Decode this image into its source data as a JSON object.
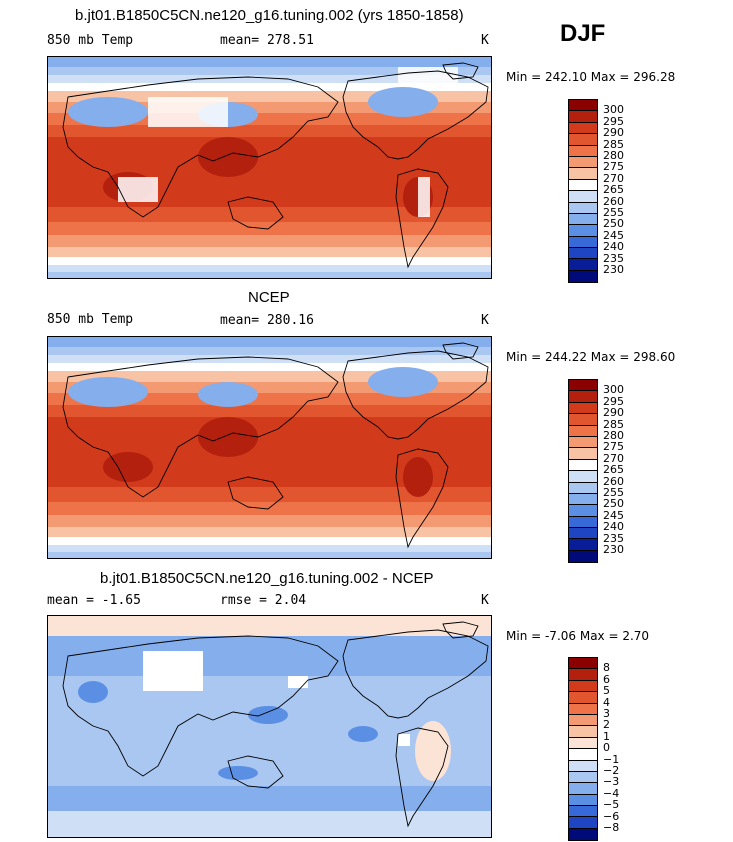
{
  "season": "DJF",
  "panels": [
    {
      "title": "b.jt01.B1850C5CN.ne120_g16.tuning.002 (yrs 1850-1858)",
      "left_label": "850 mb Temp",
      "center_label": "mean= 278.51",
      "unit": "K",
      "minmax": "Min = 242.10 Max = 296.28",
      "levels": [
        "300",
        "295",
        "290",
        "285",
        "280",
        "275",
        "270",
        "265",
        "260",
        "255",
        "250",
        "245",
        "240",
        "235",
        "230"
      ],
      "kind": "temp_model"
    },
    {
      "title": "NCEP",
      "left_label": "850 mb Temp",
      "center_label": "mean= 280.16",
      "unit": "K",
      "minmax": "Min = 244.22 Max = 298.60",
      "levels": [
        "300",
        "295",
        "290",
        "285",
        "280",
        "275",
        "270",
        "265",
        "260",
        "255",
        "250",
        "245",
        "240",
        "235",
        "230"
      ],
      "kind": "temp_obs"
    },
    {
      "title": "b.jt01.B1850C5CN.ne120_g16.tuning.002 - NCEP",
      "left_label": "mean =   -1.65",
      "center_label": "rmse =    2.04",
      "unit": "K",
      "minmax": "Min =  -7.06 Max =    2.70",
      "levels": [
        "8",
        "6",
        "5",
        "4",
        "3",
        "2",
        "1",
        "0",
        "−1",
        "−2",
        "−3",
        "−4",
        "−5",
        "−6",
        "−8"
      ],
      "kind": "diff"
    }
  ],
  "colors": {
    "temp_scale": [
      "#8b0000",
      "#b3200e",
      "#d23a1c",
      "#e2562f",
      "#ee7349",
      "#f49a72",
      "#f8c2a4",
      "#ffffff",
      "#cfdff6",
      "#aac7f1",
      "#85aeec",
      "#5b8fe3",
      "#3769d8",
      "#1f45c2",
      "#0a1d99",
      "#000a78"
    ],
    "diff_scale": [
      "#8b0000",
      "#b3200e",
      "#d23a1c",
      "#e2562f",
      "#ee7349",
      "#f49a72",
      "#f8c2a4",
      "#fbe3d6",
      "#ffffff",
      "#cfdff6",
      "#aac7f1",
      "#85aeec",
      "#5b8fe3",
      "#3769d8",
      "#1f45c2",
      "#000a78"
    ]
  }
}
